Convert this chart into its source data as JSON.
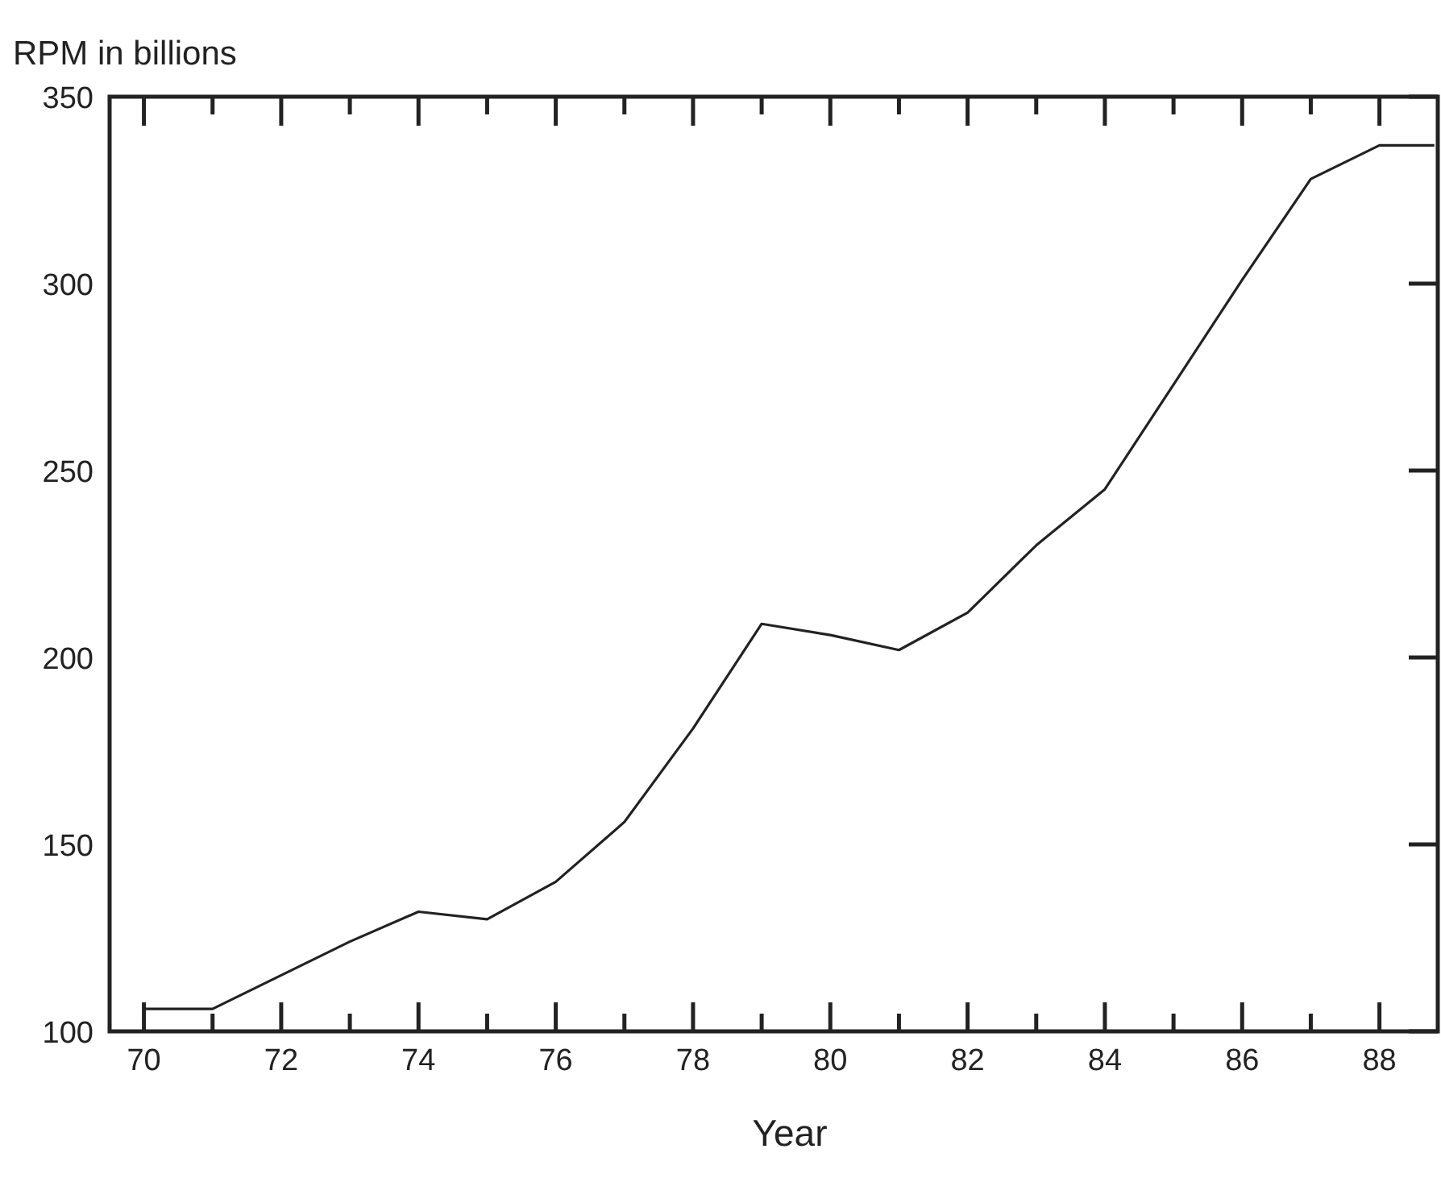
{
  "chart_data": {
    "type": "line",
    "xlabel": "Year",
    "ylabel": "RPM in billions",
    "x": [
      70,
      71,
      72,
      73,
      74,
      75,
      76,
      77,
      78,
      79,
      80,
      81,
      82,
      83,
      84,
      85,
      86,
      87,
      88,
      88.8
    ],
    "series": [
      {
        "color": "#222222",
        "values": [
          106,
          106,
          115,
          124,
          132,
          130,
          140,
          156,
          181,
          209,
          206,
          202,
          212,
          230,
          245,
          273,
          301,
          328,
          337,
          337
        ]
      }
    ],
    "xlim": [
      69.5,
      88.85
    ],
    "ylim": [
      100,
      350
    ],
    "xticks": [
      70,
      {
        "value": 71,
        "label": null
      },
      72,
      {
        "value": 73,
        "label": null
      },
      74,
      {
        "value": 75,
        "label": null
      },
      76,
      {
        "value": 77,
        "label": null
      },
      78,
      {
        "value": 79,
        "label": null
      },
      80,
      {
        "value": 81,
        "label": null
      },
      82,
      {
        "value": 83,
        "label": null
      },
      84,
      {
        "value": 85,
        "label": null
      },
      86,
      {
        "value": 87,
        "label": null
      },
      88
    ],
    "yticks": [
      100,
      150,
      200,
      250,
      300,
      350
    ],
    "grid": false,
    "marker": "none",
    "line_style": "solid"
  }
}
